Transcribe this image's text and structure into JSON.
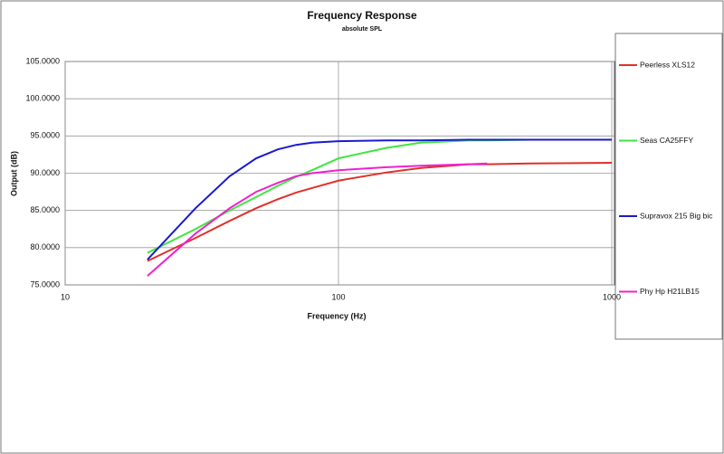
{
  "chart_data": {
    "type": "line",
    "title": "Frequency Response",
    "subtitle": "absolute SPL",
    "x_label": "Frequency (Hz)",
    "y_label": "Output (dB)",
    "x_scale": "log",
    "grid": true,
    "legend": "right",
    "xlim": [
      10,
      1000
    ],
    "xticks": [
      10,
      100,
      1000
    ],
    "ylim": [
      75,
      105
    ],
    "yticks": [
      {
        "value": 75,
        "label": "75.0000"
      },
      {
        "value": 80,
        "label": "80.0000"
      },
      {
        "value": 85,
        "label": "85.0000"
      },
      {
        "value": 90,
        "label": "90.0000"
      },
      {
        "value": 95,
        "label": "95.0000"
      },
      {
        "value": 100,
        "label": "100.0000"
      },
      {
        "value": 105,
        "label": "105.0000"
      }
    ],
    "x": [
      20,
      30,
      40,
      50,
      60,
      70,
      80,
      100,
      150,
      200,
      300,
      350,
      500,
      1000
    ],
    "series": [
      {
        "name": "Peerless XLS12",
        "color": "#e0302a",
        "values": [
          78.2,
          81.3,
          83.6,
          85.3,
          86.5,
          87.4,
          88.0,
          89.0,
          90.1,
          90.7,
          91.2,
          91.2,
          91.3,
          91.4
        ]
      },
      {
        "name": "Seas CA25FFY",
        "color": "#3ee63e",
        "values": [
          79.3,
          82.5,
          85.0,
          86.8,
          88.3,
          89.5,
          90.4,
          92.0,
          93.4,
          94.1,
          94.4,
          94.4,
          94.5,
          94.5
        ]
      },
      {
        "name": "Supravox 215 Big bic",
        "color": "#1a1ad0",
        "values": [
          78.4,
          85.3,
          89.6,
          92.0,
          93.2,
          93.8,
          94.1,
          94.3,
          94.4,
          94.4,
          94.5,
          94.5,
          94.5,
          94.5
        ]
      },
      {
        "name": "Phy Hp H21LB15",
        "color": "#f020d0",
        "values": [
          76.2,
          81.9,
          85.3,
          87.5,
          88.7,
          89.6,
          90.0,
          90.4,
          90.8,
          91.0,
          91.2,
          91.3,
          null,
          null
        ]
      }
    ]
  }
}
